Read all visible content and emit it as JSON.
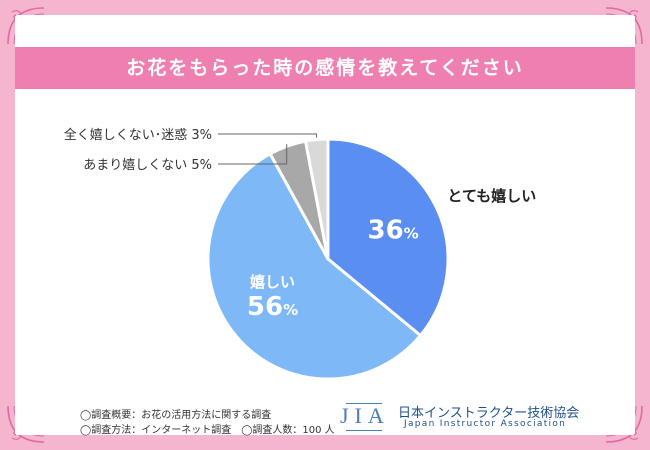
{
  "title": "お花をもらった時の感情を教えてください",
  "chart_data": {
    "type": "pie",
    "title": "お花をもらった時の感情を教えてください",
    "unit": "%",
    "slices": [
      {
        "label": "とても嬉しい",
        "value": 36,
        "color": "#5a8ef0",
        "pct_text": "36",
        "pct_unit": "%"
      },
      {
        "label": "嬉しい",
        "value": 56,
        "color": "#7eb8f7",
        "pct_text": "56",
        "pct_unit": "%"
      },
      {
        "label": "あまり嬉しくない",
        "value": 5,
        "color": "#a8a8a8",
        "leader_text": "あまり嬉しくない  5%"
      },
      {
        "label": "全く嬉しくない・迷惑",
        "value": 3,
        "color": "#d9d9d9",
        "leader_text": "全く嬉しくない･迷惑  3%"
      }
    ]
  },
  "footnotes": {
    "line1": "◯調査概要：お花の活用方法に関する調査",
    "line2": "◯調査方法：インターネット調査　◯調査人数：100 人"
  },
  "logo": {
    "mark": "JIA",
    "name": "日本インストラクター技術協会",
    "sub": "Japan  Instructor  Association"
  },
  "colors": {
    "background": "#f6b5cf",
    "title_bar": "#ef7eb1",
    "logo": "#1f4f8f"
  }
}
